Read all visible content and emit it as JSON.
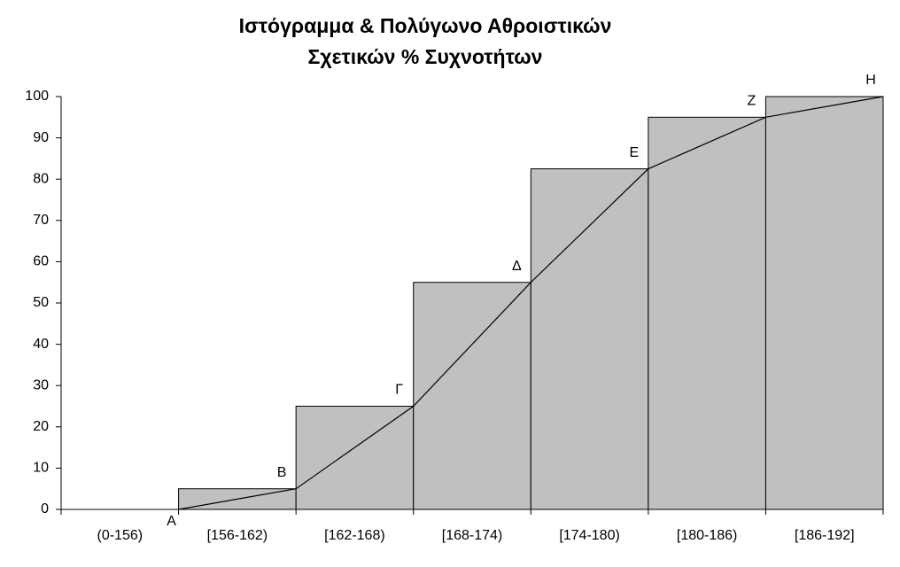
{
  "chart_data": {
    "type": "bar",
    "title": [
      "Ιστόγραμμα & Πολύγωνο Αθροιστικών",
      "Σχετικών % Συχνοτήτων"
    ],
    "categories": [
      "(0-156)",
      "[156-162)",
      "[162-168)",
      "[168-174)",
      "[174-180)",
      "[180-186)",
      "[186-192]"
    ],
    "values": [
      0,
      5,
      25,
      55,
      82.5,
      95,
      100
    ],
    "color": "#c0c0c0",
    "ylim": [
      0,
      100
    ],
    "yticks": [
      0,
      10,
      20,
      30,
      40,
      50,
      60,
      70,
      80,
      90,
      100
    ],
    "overlay": {
      "type": "line",
      "color": "#000000",
      "values": [
        0,
        5,
        25,
        55,
        82.5,
        95,
        100
      ],
      "labels": [
        "Α",
        "Β",
        "Γ",
        "Δ",
        "Ε",
        "Ζ",
        "Η"
      ]
    }
  }
}
